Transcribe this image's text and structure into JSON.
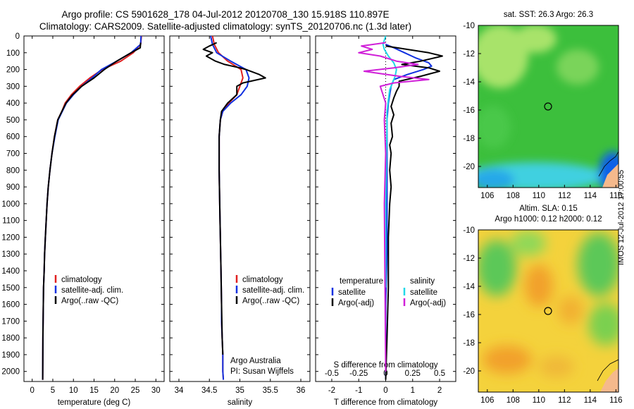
{
  "header": {
    "title_line1": "Argo profile: CS 5901628_178 04-Jul-2012 20120708_130 15.918S 110.897E",
    "title_line2": "Climatology: CARS2009. Satellite-adjusted climatology: synTS_20120706.nc (1.3d later)"
  },
  "side_panels": {
    "sst_title": "sat. SST: 26.3 Argo: 26.3",
    "sla_title_line1": "Altim. SLA: 0.15",
    "sla_title_line2": "Argo h1000: 0.12 h2000: 0.12",
    "stamp": "IMOS 12-Jul-2012 17:00:55",
    "map_lat_ticks": [
      "-10",
      "-12",
      "-14",
      "-16",
      "-18",
      "-20"
    ],
    "map_lon_ticks": [
      "106",
      "108",
      "110",
      "112",
      "114",
      "116"
    ],
    "colors": {
      "sst_green": "#3cbf3c",
      "sst_light": "#a8e36a",
      "sst_cyan": "#40d0e0",
      "sst_blue": "#1060e8",
      "sla_yellow": "#f4d23c",
      "sla_orange": "#f2a02a",
      "sla_green": "#5cc858",
      "land": "#f5b98c"
    }
  },
  "chart_data": [
    {
      "type": "line",
      "xlabel": "temperature (deg C)",
      "xticks": [
        "0",
        "5",
        "10",
        "15",
        "20",
        "25",
        "30"
      ],
      "xlim": [
        -2,
        32
      ],
      "ylim": [
        2060,
        0
      ],
      "yticks": [
        "0",
        "100",
        "200",
        "300",
        "400",
        "500",
        "600",
        "700",
        "800",
        "900",
        "1000",
        "1100",
        "1200",
        "1300",
        "1400",
        "1500",
        "1600",
        "1700",
        "1800",
        "1900",
        "2000"
      ],
      "legend": [
        "climatology",
        "satellite-adj. clim.",
        "Argo(..raw -QC)"
      ],
      "series": [
        {
          "name": "climatology",
          "color": "#e02020",
          "x": [
            26.5,
            26.3,
            24.5,
            21.5,
            17,
            14,
            11.5,
            9.5,
            8,
            7.2,
            6.2,
            5.4,
            4.8,
            4.3,
            3.9,
            3.6,
            3.4,
            3.2,
            3,
            2.9,
            2.75,
            2.6,
            2.55
          ],
          "y": [
            0,
            50,
            100,
            150,
            200,
            250,
            300,
            350,
            400,
            450,
            500,
            600,
            700,
            800,
            900,
            1000,
            1100,
            1200,
            1300,
            1400,
            1500,
            1800,
            2050
          ]
        },
        {
          "name": "satellite-adj. clim.",
          "color": "#1030e0",
          "x": [
            26.4,
            26.3,
            24,
            20.5,
            16.8,
            14.5,
            12,
            10,
            8.3,
            7.3,
            6.3,
            5.5,
            4.8,
            4.3,
            3.9,
            3.6,
            3.4,
            3.2,
            3,
            2.9,
            2.75,
            2.6,
            2.55
          ],
          "y": [
            0,
            50,
            100,
            150,
            200,
            250,
            300,
            350,
            400,
            450,
            500,
            600,
            700,
            800,
            900,
            1000,
            1100,
            1200,
            1300,
            1400,
            1500,
            1800,
            2050
          ]
        },
        {
          "name": "Argo(..raw -QC)",
          "color": "#000000",
          "x": [
            26.3,
            26.2,
            24,
            20.5,
            17.5,
            15,
            12,
            9.8,
            8.2,
            7.2,
            6.2,
            5.4,
            4.8,
            4.3,
            3.9,
            3.6,
            3.4,
            3.2,
            3,
            2.9,
            2.75,
            2.6,
            2.55
          ],
          "y": [
            40,
            70,
            100,
            150,
            200,
            250,
            300,
            350,
            400,
            450,
            500,
            600,
            700,
            800,
            900,
            1000,
            1100,
            1200,
            1300,
            1400,
            1500,
            1800,
            2050
          ]
        }
      ]
    },
    {
      "type": "line",
      "xlabel": "salinity",
      "xticks": [
        "34",
        "34.5",
        "35",
        "35.5",
        "36"
      ],
      "xlim": [
        33.85,
        36.15
      ],
      "ylim": [
        2060,
        0
      ],
      "legend": [
        "climatology",
        "satellite-adj. clim.",
        "Argo(..raw -QC)"
      ],
      "annotation_line1": "Argo Australia",
      "annotation_line2": "PI: Susan Wijffels",
      "series": [
        {
          "name": "climatology",
          "color": "#e02020",
          "x": [
            34.55,
            34.58,
            34.65,
            34.8,
            35.02,
            35.05,
            35,
            34.95,
            34.82,
            34.72,
            34.68,
            34.66,
            34.66,
            34.67,
            34.68,
            34.69,
            34.7,
            34.7,
            34.71,
            34.72,
            34.72,
            34.73
          ],
          "y": [
            0,
            50,
            100,
            150,
            200,
            250,
            300,
            350,
            400,
            450,
            500,
            600,
            800,
            1000,
            1200,
            1400,
            1600,
            1700,
            1800,
            1900,
            2000,
            2050
          ]
        },
        {
          "name": "satellite-adj. clim.",
          "color": "#1030e0",
          "x": [
            34.52,
            34.55,
            34.62,
            34.85,
            35.1,
            35.15,
            35.12,
            35.02,
            34.85,
            34.72,
            34.68,
            34.66,
            34.66,
            34.67,
            34.68,
            34.69,
            34.7,
            34.7,
            34.71,
            34.72,
            34.72,
            34.73
          ],
          "y": [
            0,
            50,
            100,
            150,
            200,
            250,
            300,
            350,
            400,
            450,
            500,
            600,
            800,
            1000,
            1200,
            1400,
            1600,
            1700,
            1800,
            1900,
            2000,
            2050
          ]
        },
        {
          "name": "Argo(..raw -QC)",
          "color": "#000000",
          "x": [
            34.62,
            34.5,
            34.4,
            34.55,
            34.45,
            34.6,
            34.75,
            35.0,
            35.1,
            35.32,
            35.42,
            35.05,
            34.95,
            34.95,
            34.8,
            34.7,
            34.68,
            34.66,
            34.66,
            34.67,
            34.68,
            34.69,
            34.7,
            34.71,
            34.72
          ],
          "y": [
            40,
            60,
            80,
            100,
            120,
            150,
            170,
            190,
            200,
            230,
            250,
            280,
            300,
            350,
            400,
            450,
            500,
            600,
            800,
            1000,
            1200,
            1400,
            1600,
            1800,
            1900
          ]
        }
      ]
    },
    {
      "type": "line",
      "xlabel": "T difference from climatology",
      "xticks": [
        "-2",
        "-1",
        "0",
        "1",
        "2"
      ],
      "xlim": [
        -2.6,
        2.6
      ],
      "top_axis_label": "S difference from climatology",
      "top_ticks": [
        "-0.5",
        "-0.25",
        "0",
        "0.25",
        "0.5"
      ],
      "ylim": [
        2060,
        0
      ],
      "legend_temperature": "temperature",
      "legend_salinity": "salinity",
      "legend": [
        "satellite",
        "Argo(-adj)",
        "satellite",
        "Argo(-adj)"
      ],
      "series": [
        {
          "name": "satellite",
          "color": "#1030e0",
          "x": [
            0,
            0.3,
            0.7,
            1.1,
            1.6,
            1.7,
            1.4,
            0.8,
            0.3,
            0.2,
            0.15,
            0.1,
            0.05,
            0.05,
            0.05,
            0.05,
            0,
            0
          ],
          "y": [
            50,
            70,
            100,
            130,
            160,
            180,
            200,
            230,
            260,
            300,
            350,
            400,
            500,
            700,
            1000,
            1300,
            1600,
            2040
          ]
        },
        {
          "name": "Argo(-adj)",
          "color": "#000000",
          "x": [
            0,
            0.8,
            1.6,
            2.1,
            1.3,
            0.6,
            1.6,
            2.0,
            1.3,
            0.5,
            0.5,
            0.4,
            0.3,
            0.2,
            0.3,
            0.2,
            0.25,
            0.15,
            0.2,
            0.15,
            0.2,
            0.15,
            0.1,
            0.1,
            0.05,
            0
          ],
          "y": [
            60,
            80,
            100,
            120,
            150,
            170,
            190,
            210,
            240,
            270,
            300,
            330,
            370,
            420,
            470,
            520,
            600,
            650,
            700,
            800,
            900,
            1000,
            1200,
            1500,
            1800,
            2050
          ]
        },
        {
          "name": "satellite",
          "color": "#20d8e8",
          "x": [
            0,
            -0.1,
            -0.05,
            0.1,
            0.3,
            0.4,
            0.35,
            0.25,
            0.15,
            0.1,
            0.05,
            0.05,
            0.03,
            0,
            0
          ],
          "y": [
            0,
            50,
            80,
            120,
            160,
            200,
            240,
            280,
            320,
            380,
            450,
            550,
            700,
            1000,
            1500
          ]
        },
        {
          "name": "Argo(-adj)",
          "color": "#d020d8",
          "x": [
            0,
            -0.9,
            -0.5,
            -1.0,
            -0.2,
            0.4,
            1.2,
            0.3,
            -0.8,
            -0.4,
            0.5,
            1.6,
            0.3,
            -0.2,
            -0.1,
            0.0,
            -0.05,
            0,
            -0.05,
            0
          ],
          "y": [
            40,
            60,
            80,
            100,
            120,
            150,
            170,
            190,
            210,
            220,
            240,
            260,
            280,
            300,
            350,
            400,
            500,
            700,
            1000,
            2000
          ]
        }
      ]
    }
  ]
}
